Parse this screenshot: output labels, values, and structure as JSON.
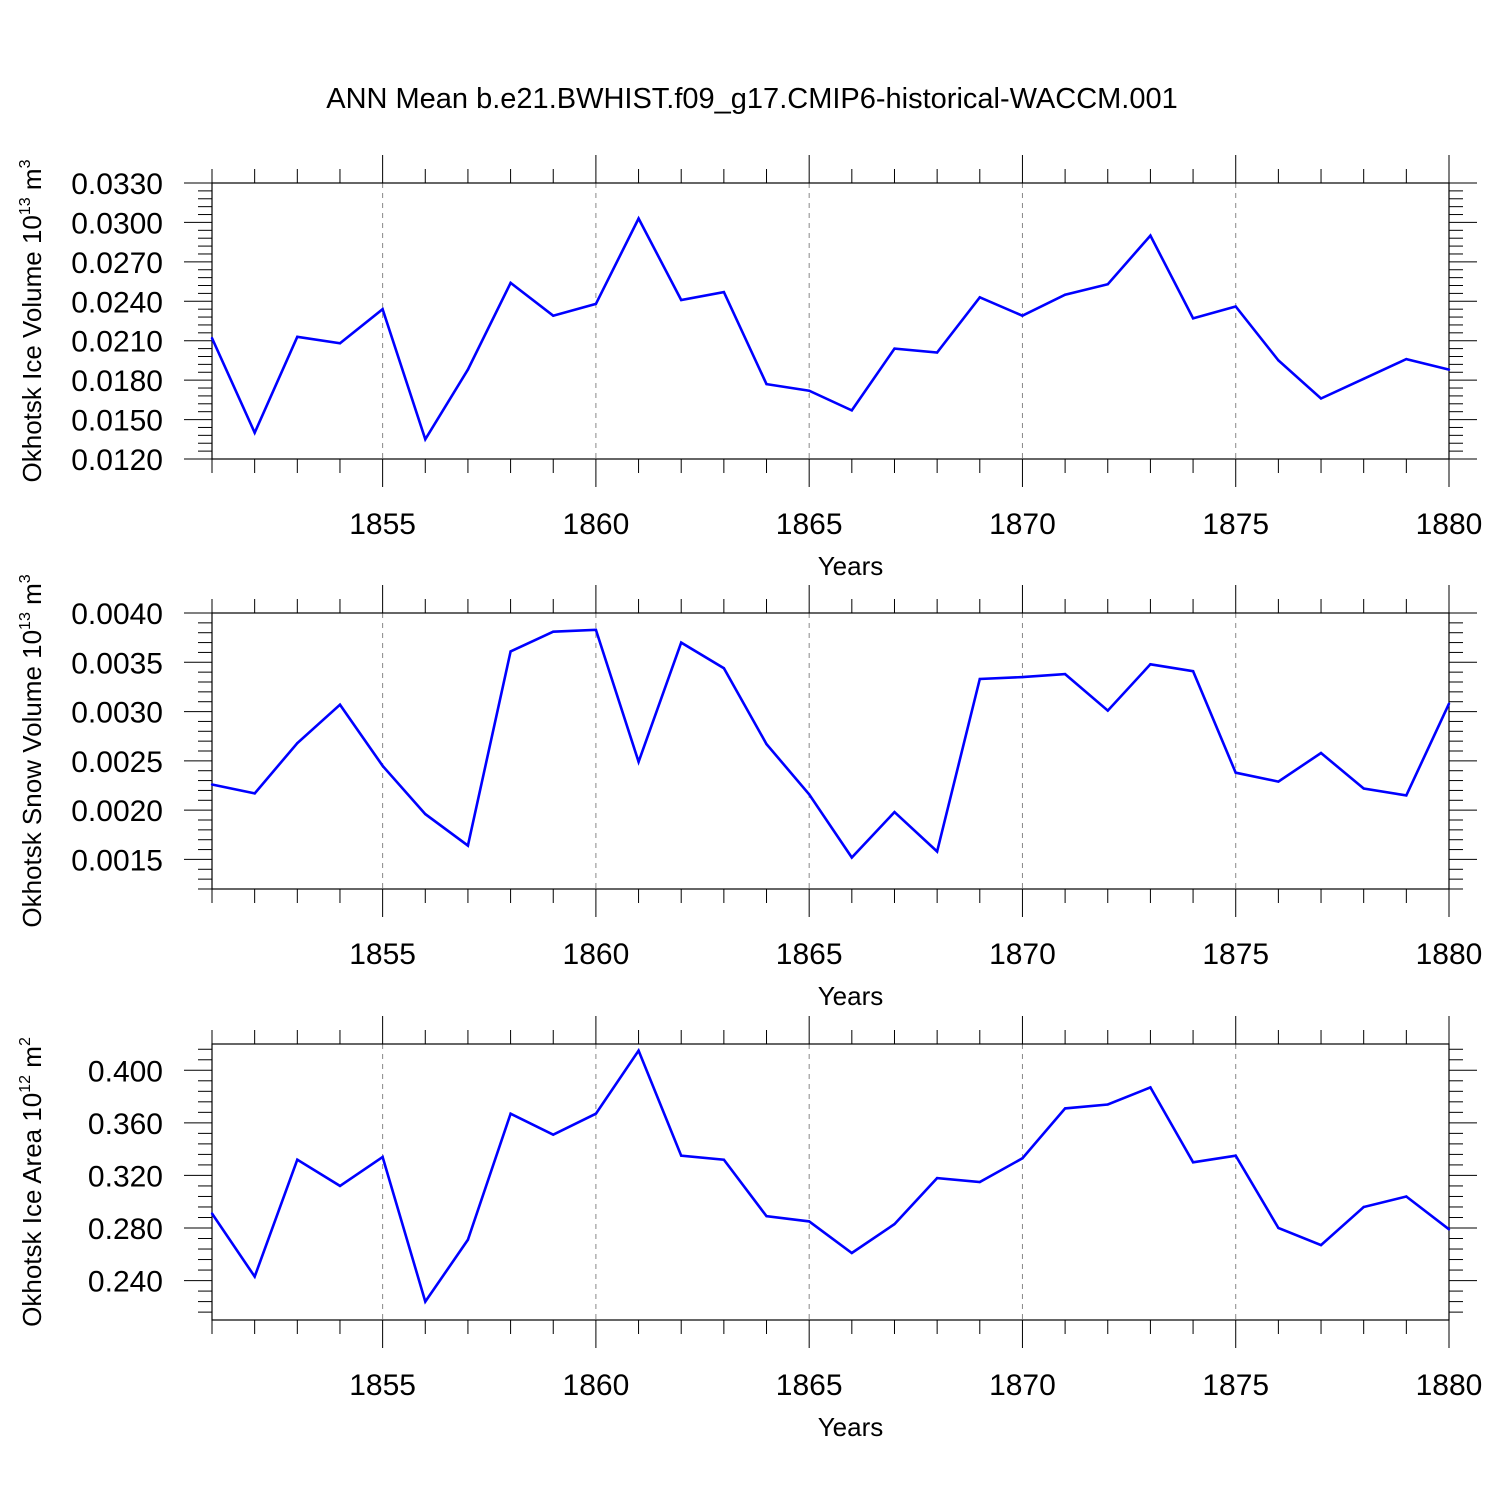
{
  "title": "ANN Mean b.e21.BWHIST.f09_g17.CMIP6-historical-WACCM.001",
  "chart_data": [
    {
      "type": "line",
      "ylabel": "Okhotsk Ice Volume 10",
      "ylabel_sup": "13",
      "ylabel_unit": " m",
      "ylabel_unit_sup": "3",
      "xlabel": "Years",
      "xlim": [
        1851,
        1880
      ],
      "ylim": [
        0.012,
        0.033
      ],
      "yticks": [
        "0.0120",
        "0.0150",
        "0.0180",
        "0.0210",
        "0.0240",
        "0.0270",
        "0.0300",
        "0.0330"
      ],
      "ytick_values": [
        0.012,
        0.015,
        0.018,
        0.021,
        0.024,
        0.027,
        0.03,
        0.033
      ],
      "xticks": [
        "1855",
        "1860",
        "1865",
        "1870",
        "1875",
        "1880"
      ],
      "xtick_values": [
        1855,
        1860,
        1865,
        1870,
        1875,
        1880
      ],
      "series": [
        {
          "name": "Okhotsk Ice Volume",
          "color": "#0000ff",
          "x": [
            1851,
            1852,
            1853,
            1854,
            1855,
            1856,
            1857,
            1858,
            1859,
            1860,
            1861,
            1862,
            1863,
            1864,
            1865,
            1866,
            1867,
            1868,
            1869,
            1870,
            1871,
            1872,
            1873,
            1874,
            1875,
            1876,
            1877,
            1878,
            1879,
            1880
          ],
          "values": [
            0.0212,
            0.014,
            0.0213,
            0.0208,
            0.0234,
            0.0135,
            0.0188,
            0.0254,
            0.0229,
            0.0238,
            0.0303,
            0.0241,
            0.0247,
            0.0177,
            0.0172,
            0.0157,
            0.0204,
            0.0201,
            0.0243,
            0.0229,
            0.0245,
            0.0253,
            0.029,
            0.0227,
            0.0236,
            0.0195,
            0.0166,
            0.0181,
            0.0196,
            0.0188
          ]
        }
      ]
    },
    {
      "type": "line",
      "ylabel": "Okhotsk Snow Volume 10",
      "ylabel_sup": "13",
      "ylabel_unit": " m",
      "ylabel_unit_sup": "3",
      "xlabel": "Years",
      "xlim": [
        1851,
        1880
      ],
      "ylim": [
        0.0012,
        0.004
      ],
      "yticks": [
        "0.0015",
        "0.0020",
        "0.0025",
        "0.0030",
        "0.0035",
        "0.0040"
      ],
      "ytick_values": [
        0.0015,
        0.002,
        0.0025,
        0.003,
        0.0035,
        0.004
      ],
      "xticks": [
        "1855",
        "1860",
        "1865",
        "1870",
        "1875",
        "1880"
      ],
      "xtick_values": [
        1855,
        1860,
        1865,
        1870,
        1875,
        1880
      ],
      "series": [
        {
          "name": "Okhotsk Snow Volume",
          "color": "#0000ff",
          "x": [
            1851,
            1852,
            1853,
            1854,
            1855,
            1856,
            1857,
            1858,
            1859,
            1860,
            1861,
            1862,
            1863,
            1864,
            1865,
            1866,
            1867,
            1868,
            1869,
            1870,
            1871,
            1872,
            1873,
            1874,
            1875,
            1876,
            1877,
            1878,
            1879,
            1880
          ],
          "values": [
            0.00226,
            0.00217,
            0.00268,
            0.00307,
            0.00245,
            0.00196,
            0.00164,
            0.00361,
            0.00381,
            0.00383,
            0.00249,
            0.0037,
            0.00344,
            0.00267,
            0.00216,
            0.00152,
            0.00198,
            0.00158,
            0.00333,
            0.00335,
            0.00338,
            0.00301,
            0.00348,
            0.00341,
            0.00238,
            0.00229,
            0.00258,
            0.00222,
            0.00215,
            0.00308
          ]
        }
      ]
    },
    {
      "type": "line",
      "ylabel": "Okhotsk Ice Area 10",
      "ylabel_sup": "12",
      "ylabel_unit": " m",
      "ylabel_unit_sup": "2",
      "xlabel": "Years",
      "xlim": [
        1851,
        1880
      ],
      "ylim": [
        0.21,
        0.42
      ],
      "yticks": [
        "0.240",
        "0.280",
        "0.320",
        "0.360",
        "0.400"
      ],
      "ytick_values": [
        0.24,
        0.28,
        0.32,
        0.36,
        0.4
      ],
      "xticks": [
        "1855",
        "1860",
        "1865",
        "1870",
        "1875",
        "1880"
      ],
      "xtick_values": [
        1855,
        1860,
        1865,
        1870,
        1875,
        1880
      ],
      "series": [
        {
          "name": "Okhotsk Ice Area",
          "color": "#0000ff",
          "x": [
            1851,
            1852,
            1853,
            1854,
            1855,
            1856,
            1857,
            1858,
            1859,
            1860,
            1861,
            1862,
            1863,
            1864,
            1865,
            1866,
            1867,
            1868,
            1869,
            1870,
            1871,
            1872,
            1873,
            1874,
            1875,
            1876,
            1877,
            1878,
            1879,
            1880
          ],
          "values": [
            0.291,
            0.243,
            0.332,
            0.312,
            0.334,
            0.224,
            0.271,
            0.367,
            0.351,
            0.367,
            0.415,
            0.335,
            0.332,
            0.289,
            0.285,
            0.261,
            0.283,
            0.318,
            0.315,
            0.333,
            0.371,
            0.374,
            0.387,
            0.33,
            0.335,
            0.28,
            0.267,
            0.296,
            0.304,
            0.279
          ]
        }
      ]
    }
  ]
}
